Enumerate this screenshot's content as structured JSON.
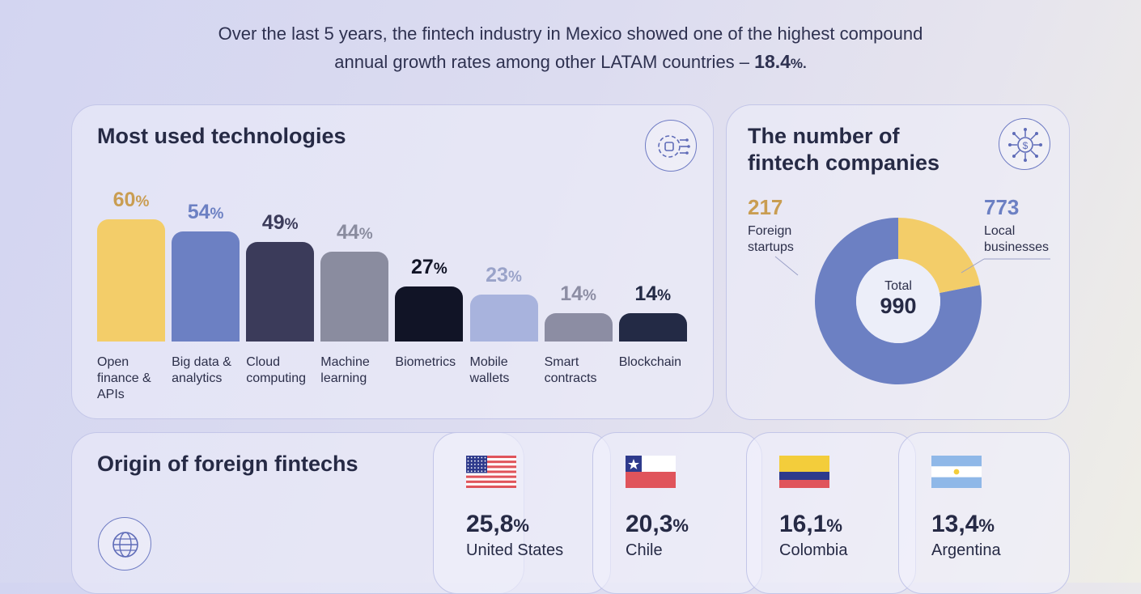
{
  "intro": {
    "line1": "Over the last 5 years, the fintech industry in Mexico showed one of the highest compound",
    "line2": "annual growth rates among other LATAM countries –",
    "highlight_value": "18.4",
    "highlight_unit": "%."
  },
  "technologies": {
    "title": "Most used technologies",
    "icon": "ai-chip-icon"
  },
  "companies": {
    "title_line1": "The number of",
    "title_line2": "fintech companies",
    "icon": "fintech-dollar-icon",
    "foreign_value": "217",
    "foreign_label_line1": "Foreign",
    "foreign_label_line2": "startups",
    "local_value": "773",
    "local_label_line1": "Local",
    "local_label_line2": "businesses",
    "total_label": "Total",
    "total_value": "990"
  },
  "origin": {
    "title": "Origin of foreign fintechs",
    "icon": "globe-circuit-icon",
    "countries": [
      {
        "value": "25,8",
        "unit": "%",
        "name": "United States",
        "flag": "us-flag-icon"
      },
      {
        "value": "20,3",
        "unit": "%",
        "name": "Chile",
        "flag": "chile-flag-icon"
      },
      {
        "value": "16,1",
        "unit": "%",
        "name": "Colombia",
        "flag": "colombia-flag-icon"
      },
      {
        "value": "13,4",
        "unit": "%",
        "name": "Argentina",
        "flag": "argentina-flag-icon"
      }
    ]
  },
  "chart_data": [
    {
      "type": "bar",
      "title": "Most used technologies",
      "categories": [
        "Open finance & APIs",
        "Big data & analytics",
        "Cloud computing",
        "Machine learning",
        "Biometrics",
        "Mobile wallets",
        "Smart contracts",
        "Blockchain"
      ],
      "label_lines": [
        [
          "Open",
          "finance &",
          "APIs"
        ],
        [
          "Big data &",
          "analytics"
        ],
        [
          "Cloud",
          "computing"
        ],
        [
          "Machine",
          "learning"
        ],
        [
          "Biometrics"
        ],
        [
          "Mobile",
          "wallets"
        ],
        [
          "Smart",
          "contracts"
        ],
        [
          "Blockchain"
        ]
      ],
      "values": [
        60,
        54,
        49,
        44,
        27,
        23,
        14,
        14
      ],
      "value_labels": [
        "60",
        "54",
        "49",
        "44",
        "27",
        "23",
        "14",
        "14"
      ],
      "unit": "%",
      "bar_colors": [
        "#f3cd69",
        "#6c80c3",
        "#3b3b5a",
        "#8a8c9f",
        "#111426",
        "#a8b3dd",
        "#8c8da3",
        "#232a45"
      ],
      "label_colors": [
        "#c99d52",
        "#6c80c3",
        "#3b3b5a",
        "#8a8c9f",
        "#111426",
        "#9aa3c9",
        "#8c8da3",
        "#232a45"
      ],
      "ylim": [
        0,
        60
      ]
    },
    {
      "type": "pie",
      "title": "The number of fintech companies",
      "categories": [
        "Foreign startups",
        "Local businesses"
      ],
      "values": [
        217,
        773
      ],
      "total": 990,
      "colors": [
        "#f3cd69",
        "#6c80c3"
      ]
    }
  ]
}
